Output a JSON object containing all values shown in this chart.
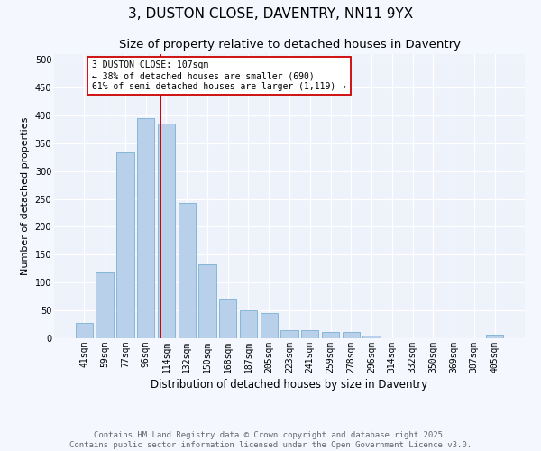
{
  "title": "3, DUSTON CLOSE, DAVENTRY, NN11 9YX",
  "subtitle": "Size of property relative to detached houses in Daventry",
  "xlabel": "Distribution of detached houses by size in Daventry",
  "ylabel": "Number of detached properties",
  "categories": [
    "41sqm",
    "59sqm",
    "77sqm",
    "96sqm",
    "114sqm",
    "132sqm",
    "150sqm",
    "168sqm",
    "187sqm",
    "205sqm",
    "223sqm",
    "241sqm",
    "259sqm",
    "278sqm",
    "296sqm",
    "314sqm",
    "332sqm",
    "350sqm",
    "369sqm",
    "387sqm",
    "405sqm"
  ],
  "values": [
    27,
    118,
    333,
    395,
    385,
    243,
    133,
    69,
    50,
    46,
    15,
    15,
    12,
    12,
    5,
    0,
    0,
    0,
    0,
    0,
    6
  ],
  "bar_color": "#b8d0ea",
  "bar_edge_color": "#7aafd4",
  "bg_color": "#eef2fb",
  "grid_color": "#ffffff",
  "vline_color": "#cc0000",
  "vline_pos": 3.72,
  "annotation_text": "3 DUSTON CLOSE: 107sqm\n← 38% of detached houses are smaller (690)\n61% of semi-detached houses are larger (1,119) →",
  "annotation_box_color": "#cc0000",
  "footer": "Contains HM Land Registry data © Crown copyright and database right 2025.\nContains public sector information licensed under the Open Government Licence v3.0.",
  "ylim": [
    0,
    510
  ],
  "yticks": [
    0,
    50,
    100,
    150,
    200,
    250,
    300,
    350,
    400,
    450,
    500
  ],
  "title_fontsize": 11,
  "subtitle_fontsize": 9.5,
  "xlabel_fontsize": 8.5,
  "ylabel_fontsize": 8,
  "tick_fontsize": 7,
  "footer_fontsize": 6.5,
  "fig_bg": "#f5f7ff"
}
